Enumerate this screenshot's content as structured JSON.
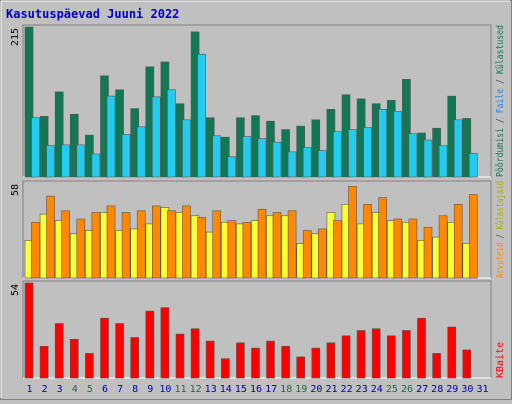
{
  "chart_data": {
    "type": "bar",
    "title": "Kasutuspäevad Juuni 2022",
    "categories": [
      "1",
      "2",
      "3",
      "4",
      "5",
      "6",
      "7",
      "8",
      "9",
      "10",
      "11",
      "12",
      "13",
      "14",
      "15",
      "16",
      "17",
      "18",
      "19",
      "20",
      "21",
      "22",
      "23",
      "24",
      "25",
      "26",
      "27",
      "28",
      "29",
      "30",
      "31"
    ],
    "weekend_days": [
      "4",
      "5",
      "11",
      "12",
      "18",
      "19",
      "25",
      "26"
    ],
    "colors": {
      "title": "#0000cc",
      "day": "#0000aa",
      "weekend_day": "#226644",
      "kulastused": "#117755",
      "failid": "#22ccee",
      "poordumisi": "#117755",
      "failid_label": "#2288ee",
      "arvutid": "#ff8800",
      "kulastajaid": "#ffff33",
      "kulastajaid_label": "#aaaa00",
      "kbaite": "#ff0000",
      "separator": "#444444"
    },
    "panels": [
      {
        "ymax": 215,
        "ymax_label": "215",
        "legend": [
          {
            "text": "Pöördumisi",
            "color": "#117755"
          },
          {
            "text": " / ",
            "color": "#444444"
          },
          {
            "text": "Faile",
            "color": "#2288ee"
          },
          {
            "text": " / ",
            "color": "#444444"
          },
          {
            "text": "Külastused",
            "color": "#117755"
          }
        ],
        "series": [
          {
            "name": "Pöördumisi",
            "color": "#117755",
            "values": [
              215,
              87,
              122,
              90,
              60,
              145,
              125,
              98,
              158,
              165,
              105,
              208,
              85,
              57,
              85,
              88,
              80,
              68,
              73,
              82,
              97,
              118,
              112,
              105,
              110,
              140,
              63,
              70,
              116,
              84,
              0
            ]
          },
          {
            "name": "Faile",
            "color": "#22ccee",
            "values": [
              85,
              45,
              46,
              46,
              33,
              116,
              61,
              72,
              115,
              125,
              82,
              176,
              59,
              29,
              58,
              55,
              50,
              36,
              42,
              38,
              65,
              68,
              71,
              97,
              94,
              62,
              53,
              45,
              82,
              34,
              0
            ]
          }
        ]
      },
      {
        "ymax": 58,
        "ymax_label": "58",
        "legend": [
          {
            "text": "Arvuteid",
            "color": "#ff8800"
          },
          {
            "text": " / ",
            "color": "#444444"
          },
          {
            "text": "Külastajaid",
            "color": "#aaaa00"
          }
        ],
        "series": [
          {
            "name": "Külastajaid",
            "color": "#ffff33",
            "values": [
              23,
              39,
              35,
              27,
              29,
              40,
              29,
              30,
              33,
              43,
              40,
              38,
              28,
              34,
              33,
              35,
              38,
              38,
              21,
              27,
              40,
              45,
              33,
              40,
              35,
              34,
              23,
              25,
              34,
              21,
              0
            ]
          },
          {
            "name": "Arvuteid",
            "color": "#ff8800",
            "values": [
              34,
              50,
              41,
              36,
              40,
              44,
              40,
              41,
              44,
              41,
              44,
              37,
              41,
              35,
              34,
              42,
              40,
              41,
              29,
              30,
              35,
              56,
              45,
              49,
              36,
              36,
              31,
              38,
              45,
              51,
              0
            ]
          }
        ]
      },
      {
        "ymax": 54,
        "ymax_label": "54",
        "legend": [
          {
            "text": "KBaite",
            "color": "#ff0000"
          }
        ],
        "series": [
          {
            "name": "KBaite",
            "color": "#ff0000",
            "values": [
              54,
              18,
              31,
              22,
              14,
              34,
              31,
              23,
              38,
              40,
              25,
              28,
              21,
              11,
              20,
              17,
              21,
              18,
              12,
              17,
              20,
              24,
              27,
              28,
              24,
              27,
              34,
              14,
              29,
              16,
              0
            ]
          }
        ]
      }
    ]
  }
}
